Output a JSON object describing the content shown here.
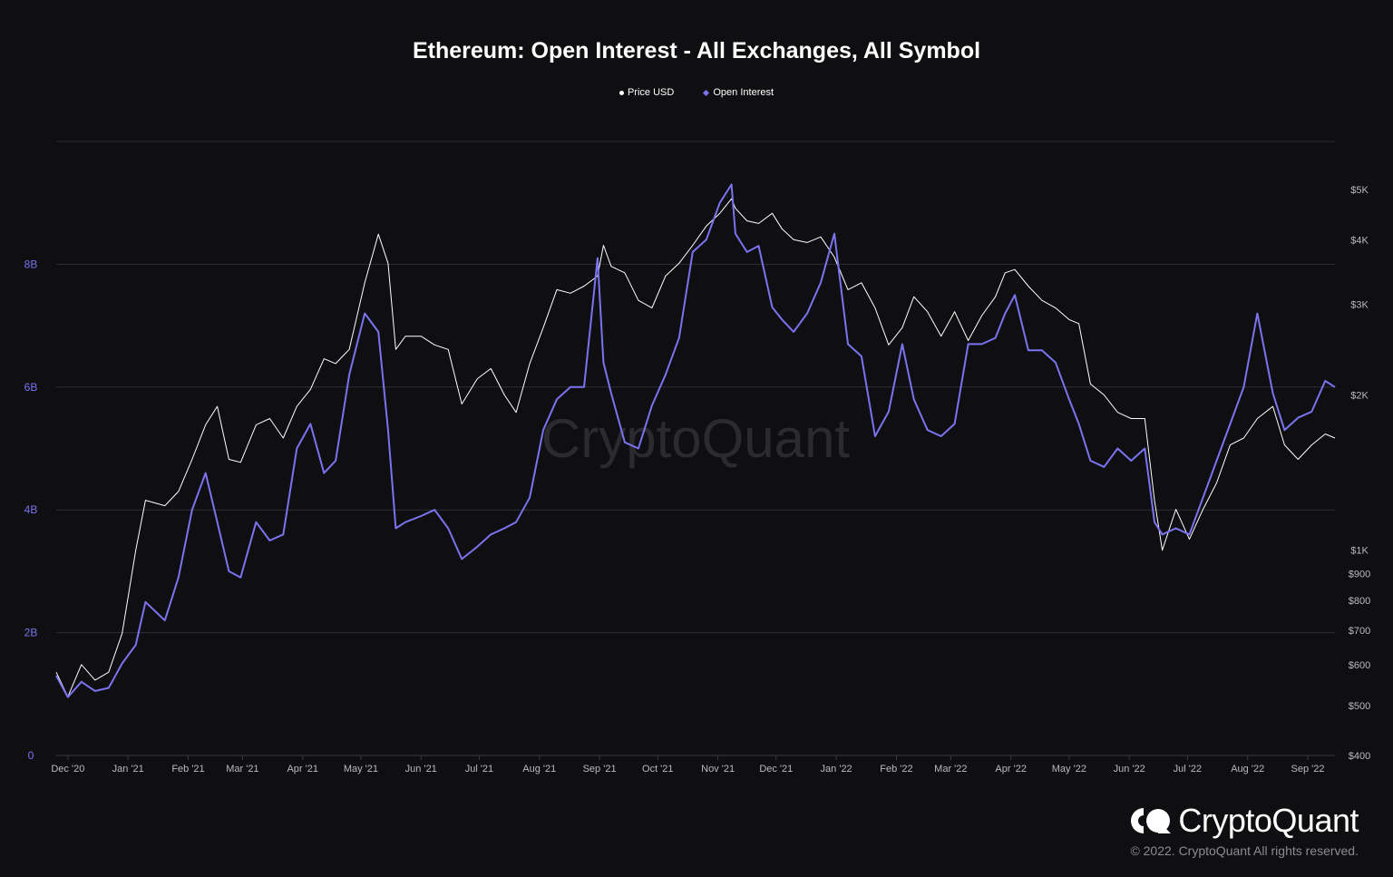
{
  "chart_data": {
    "type": "line",
    "title": "Ethereum: Open Interest - All Exchanges, All Symbol",
    "watermark": "CryptoQuant",
    "colors": {
      "price": "#ffffff",
      "open_interest": "#7b73f0",
      "background": "#0f0f12",
      "grid": "#2e2e34"
    },
    "legend": [
      "Price USD",
      "Open Interest"
    ],
    "legend_placement": "top-center",
    "grid": true,
    "x_tick_labels": [
      "Dec '20",
      "Jan '21",
      "Feb '21",
      "Mar '21",
      "Apr '21",
      "May '21",
      "Jun '21",
      "Jul '21",
      "Aug '21",
      "Sep '21",
      "Oct '21",
      "Nov '21",
      "Dec '21",
      "Jan '22",
      "Feb '22",
      "Mar '22",
      "Apr '22",
      "May '22",
      "Jun '22",
      "Jul '22",
      "Aug '22",
      "Sep '22"
    ],
    "y_left": {
      "label": "",
      "ticks": [
        "0",
        "2B",
        "4B",
        "6B",
        "8B"
      ],
      "range": [
        0,
        10000000000
      ]
    },
    "y_right": {
      "label": "",
      "scale": "log",
      "ticks": [
        "$400",
        "$500",
        "$600",
        "$700",
        "$800",
        "$900",
        "$1K",
        "$2K",
        "$3K",
        "$4K",
        "$5K"
      ],
      "range": [
        400,
        6200
      ]
    },
    "x": [
      "2020-11-25",
      "2020-12-01",
      "2020-12-08",
      "2020-12-15",
      "2020-12-22",
      "2020-12-29",
      "2021-01-05",
      "2021-01-10",
      "2021-01-20",
      "2021-01-27",
      "2021-02-03",
      "2021-02-10",
      "2021-02-16",
      "2021-02-22",
      "2021-02-28",
      "2021-03-08",
      "2021-03-15",
      "2021-03-22",
      "2021-03-29",
      "2021-04-05",
      "2021-04-12",
      "2021-04-18",
      "2021-04-25",
      "2021-05-03",
      "2021-05-10",
      "2021-05-15",
      "2021-05-19",
      "2021-05-24",
      "2021-06-01",
      "2021-06-08",
      "2021-06-15",
      "2021-06-22",
      "2021-06-30",
      "2021-07-07",
      "2021-07-14",
      "2021-07-20",
      "2021-07-27",
      "2021-08-03",
      "2021-08-10",
      "2021-08-17",
      "2021-08-24",
      "2021-08-31",
      "2021-09-03",
      "2021-09-07",
      "2021-09-14",
      "2021-09-21",
      "2021-09-28",
      "2021-10-05",
      "2021-10-12",
      "2021-10-19",
      "2021-10-26",
      "2021-11-02",
      "2021-11-08",
      "2021-11-10",
      "2021-11-16",
      "2021-11-22",
      "2021-11-29",
      "2021-12-04",
      "2021-12-10",
      "2021-12-17",
      "2021-12-24",
      "2021-12-31",
      "2022-01-07",
      "2022-01-14",
      "2022-01-21",
      "2022-01-28",
      "2022-02-04",
      "2022-02-10",
      "2022-02-17",
      "2022-02-24",
      "2022-03-03",
      "2022-03-10",
      "2022-03-17",
      "2022-03-24",
      "2022-03-29",
      "2022-04-03",
      "2022-04-10",
      "2022-04-17",
      "2022-04-24",
      "2022-05-01",
      "2022-05-06",
      "2022-05-12",
      "2022-05-19",
      "2022-05-26",
      "2022-06-02",
      "2022-06-09",
      "2022-06-14",
      "2022-06-18",
      "2022-06-25",
      "2022-07-02",
      "2022-07-09",
      "2022-07-16",
      "2022-07-23",
      "2022-07-30",
      "2022-08-06",
      "2022-08-14",
      "2022-08-20",
      "2022-08-27",
      "2022-09-03",
      "2022-09-10",
      "2022-09-15"
    ],
    "series": [
      {
        "name": "Price USD",
        "axis": "right",
        "values": [
          580,
          520,
          600,
          560,
          580,
          690,
          1000,
          1250,
          1220,
          1300,
          1500,
          1750,
          1900,
          1500,
          1480,
          1750,
          1800,
          1650,
          1900,
          2050,
          2350,
          2300,
          2450,
          3300,
          4100,
          3600,
          2450,
          2600,
          2600,
          2500,
          2450,
          1920,
          2150,
          2250,
          2000,
          1850,
          2300,
          2700,
          3200,
          3150,
          3250,
          3400,
          3900,
          3550,
          3450,
          3050,
          2950,
          3400,
          3600,
          3900,
          4250,
          4500,
          4800,
          4600,
          4350,
          4300,
          4500,
          4200,
          4000,
          3950,
          4050,
          3700,
          3200,
          3300,
          2950,
          2500,
          2700,
          3100,
          2900,
          2600,
          2900,
          2550,
          2850,
          3100,
          3450,
          3500,
          3250,
          3050,
          2950,
          2800,
          2750,
          2100,
          2000,
          1850,
          1800,
          1800,
          1250,
          1000,
          1200,
          1050,
          1200,
          1350,
          1600,
          1650,
          1800,
          1900,
          1600,
          1500,
          1600,
          1680,
          1650
        ]
      },
      {
        "name": "Open Interest",
        "axis": "left",
        "values": [
          1300000000,
          950000000,
          1200000000,
          1050000000,
          1100000000,
          1500000000,
          1800000000,
          2500000000,
          2200000000,
          2900000000,
          4000000000,
          4600000000,
          3800000000,
          3000000000,
          2900000000,
          3800000000,
          3500000000,
          3600000000,
          5000000000,
          5400000000,
          4600000000,
          4800000000,
          6200000000,
          7200000000,
          6900000000,
          5300000000,
          3700000000,
          3800000000,
          3900000000,
          4000000000,
          3700000000,
          3200000000,
          3400000000,
          3600000000,
          3700000000,
          3800000000,
          4200000000,
          5300000000,
          5800000000,
          6000000000,
          6000000000,
          8100000000,
          6400000000,
          5900000000,
          5100000000,
          5000000000,
          5700000000,
          6200000000,
          6800000000,
          8200000000,
          8400000000,
          9000000000,
          9300000000,
          8500000000,
          8200000000,
          8300000000,
          7300000000,
          7100000000,
          6900000000,
          7200000000,
          7700000000,
          8500000000,
          6700000000,
          6500000000,
          5200000000,
          5600000000,
          6700000000,
          5800000000,
          5300000000,
          5200000000,
          5400000000,
          6700000000,
          6700000000,
          6800000000,
          7200000000,
          7500000000,
          6600000000,
          6600000000,
          6400000000,
          5800000000,
          5400000000,
          4800000000,
          4700000000,
          5000000000,
          4800000000,
          5000000000,
          3800000000,
          3600000000,
          3700000000,
          3600000000,
          4200000000,
          4800000000,
          5400000000,
          6000000000,
          7200000000,
          5900000000,
          5300000000,
          5500000000,
          5600000000,
          6100000000,
          6000000000
        ]
      }
    ]
  },
  "legend_labels": {
    "price": "Price USD",
    "oi": "Open Interest"
  },
  "logo_text": "CryptoQuant",
  "copyright": "© 2022. CryptoQuant All rights reserved."
}
